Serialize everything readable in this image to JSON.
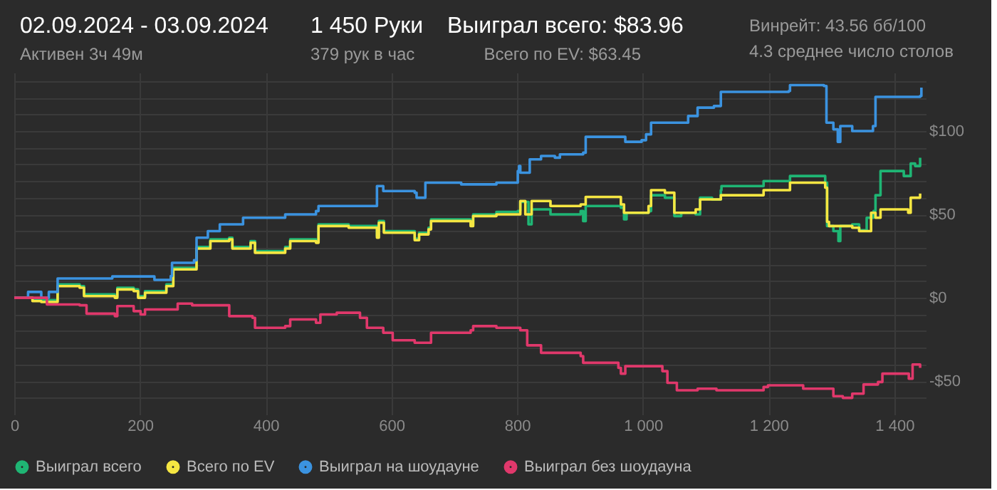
{
  "chart_data": {
    "type": "step",
    "title": "02.09.2024 - 03.09.2024",
    "subtitle": "Активен 3ч 49м",
    "annotations": [
      "1 450 Руки",
      "379 рук в час",
      "Выиграл всего: $83.96",
      "Всего по EV: $63.45",
      "Винрейт: 43.56 бб/100",
      "4.3 среднее число столов"
    ],
    "xlim": [
      0,
      1450
    ],
    "xticks": [
      0,
      200,
      400,
      600,
      800,
      {
        "value": 1000,
        "label": "1 000"
      },
      {
        "value": 1200,
        "label": "1 200"
      },
      {
        "value": 1400,
        "label": "1 400"
      }
    ],
    "ylim": [
      -70,
      135
    ],
    "yticks": [
      {
        "value": -60,
        "label": null
      },
      {
        "value": -50,
        "label": "-$50"
      },
      {
        "value": -40,
        "label": null
      },
      {
        "value": -30,
        "label": null
      },
      {
        "value": -20,
        "label": null
      },
      {
        "value": -10,
        "label": null
      },
      {
        "value": 0,
        "label": "$0"
      },
      {
        "value": 10,
        "label": null
      },
      {
        "value": 20,
        "label": null
      },
      {
        "value": 30,
        "label": null
      },
      {
        "value": 40,
        "label": null
      },
      {
        "value": 50,
        "label": "$50"
      },
      {
        "value": 60,
        "label": null
      },
      {
        "value": 70,
        "label": null
      },
      {
        "value": 80,
        "label": null
      },
      {
        "value": 90,
        "label": null
      },
      {
        "value": 100,
        "label": "$100"
      },
      {
        "value": 110,
        "label": null
      },
      {
        "value": 120,
        "label": null
      },
      {
        "value": 130,
        "label": null
      }
    ],
    "grid": true,
    "legend": "bottom",
    "marker": "none",
    "line_style": "solid",
    "series": [
      {
        "name": "Выиграл всего",
        "color": "#1fb574",
        "x": [
          0,
          29,
          43,
          69,
          104,
          111,
          160,
          164,
          190,
          197,
          208,
          242,
          253,
          286,
          290,
          308,
          312,
          342,
          347,
          376,
          383,
          431,
          439,
          480,
          484,
          532,
          577,
          580,
          588,
          637,
          644,
          659,
          663,
          726,
          730,
          767,
          801,
          805,
          818,
          823,
          853,
          901,
          905,
          909,
          965,
          970,
          974,
          1009,
          1013,
          1035,
          1050,
          1061,
          1084,
          1091,
          1110,
          1124,
          1125,
          1192,
          1234,
          1290,
          1293,
          1303,
          1311,
          1314,
          1333,
          1344,
          1356,
          1367,
          1370,
          1378,
          1415,
          1426,
          1433,
          1441
        ],
        "values": [
          0,
          -1,
          -1.5,
          8,
          7,
          2,
          1,
          6,
          5,
          1,
          4,
          8,
          18,
          18,
          30.5,
          30.5,
          35,
          36,
          30.5,
          34,
          28,
          30.5,
          35,
          34,
          44,
          43,
          37,
          46,
          40,
          35.5,
          39,
          42,
          47,
          44,
          50,
          51.5,
          52,
          57.5,
          44,
          53,
          50,
          52,
          46,
          55,
          54,
          47,
          51,
          52,
          61.5,
          60,
          49,
          51,
          50,
          60,
          59,
          64.5,
          67,
          70,
          73,
          69,
          43,
          40,
          34,
          43,
          44,
          40.5,
          48,
          52,
          61.5,
          76,
          73,
          80.5,
          79,
          84
        ]
      },
      {
        "name": "Всего по EV",
        "color": "#f5e642",
        "x": [
          0,
          29,
          43,
          69,
          104,
          111,
          160,
          164,
          190,
          197,
          208,
          242,
          253,
          286,
          290,
          308,
          312,
          342,
          347,
          376,
          383,
          431,
          439,
          480,
          484,
          532,
          577,
          580,
          588,
          637,
          644,
          659,
          663,
          726,
          730,
          767,
          805,
          813,
          823,
          853,
          901,
          909,
          965,
          970,
          1009,
          1013,
          1035,
          1050,
          1084,
          1091,
          1124,
          1192,
          1234,
          1290,
          1293,
          1296,
          1314,
          1333,
          1344,
          1363,
          1370,
          1378,
          1422,
          1426,
          1441
        ],
        "values": [
          0,
          -2,
          -2.5,
          7,
          6,
          1,
          0,
          5,
          4,
          0,
          3,
          7,
          17,
          17,
          29.5,
          29.5,
          34,
          35,
          29.5,
          33,
          27,
          29.5,
          34,
          33,
          43,
          42,
          36,
          45,
          39,
          34.5,
          38,
          41,
          46,
          43,
          49,
          50,
          58,
          50,
          58,
          55,
          56,
          60.5,
          56,
          51,
          55,
          64.5,
          63,
          51,
          53,
          59,
          61.5,
          64.5,
          69,
          66,
          45.5,
          43,
          43,
          42,
          40,
          51,
          48,
          53,
          51,
          60,
          62.5
        ]
      },
      {
        "name": "Выиграл на шоудауне",
        "color": "#3b93e0",
        "x": [
          0,
          22,
          40,
          43,
          55,
          69,
          156,
          223,
          249,
          251,
          286,
          290,
          308,
          327,
          364,
          428,
          431,
          480,
          484,
          558,
          577,
          587,
          637,
          640,
          654,
          711,
          767,
          801,
          803,
          805,
          820,
          838,
          860,
          868,
          905,
          909,
          965,
          972,
          998,
          1005,
          1013,
          1061,
          1072,
          1087,
          1113,
          1124,
          1232,
          1234,
          1288,
          1292,
          1303,
          1310,
          1314,
          1329,
          1333,
          1359,
          1366,
          1370,
          1441,
          1443
        ],
        "values": [
          0,
          3.5,
          3.5,
          0,
          3.5,
          11.6,
          12.8,
          10.7,
          13,
          21,
          22.5,
          36,
          40,
          44,
          48,
          48,
          50,
          52,
          55,
          55,
          67,
          64,
          63,
          60,
          69,
          68,
          69,
          76,
          79,
          75,
          83,
          85,
          84,
          86,
          87,
          96.5,
          96.5,
          93.5,
          94.5,
          98,
          105,
          105,
          109,
          114,
          115,
          123.5,
          124,
          127.5,
          127,
          105,
          101,
          93.5,
          103,
          103,
          100,
          100,
          103,
          120.5,
          121,
          126
        ]
      },
      {
        "name": "Выиграл без шоудауна",
        "color": "#e0386b",
        "x": [
          0,
          52,
          104,
          115,
          160,
          164,
          190,
          201,
          208,
          260,
          283,
          342,
          379,
          383,
          431,
          439,
          480,
          487,
          513,
          550,
          561,
          587,
          602,
          637,
          659,
          663,
          726,
          730,
          767,
          805,
          816,
          838,
          864,
          901,
          905,
          961,
          965,
          972,
          1031,
          1039,
          1054,
          1087,
          1117,
          1192,
          1199,
          1255,
          1303,
          1318,
          1333,
          1344,
          1351,
          1374,
          1381,
          1423,
          1429,
          1441
        ],
        "values": [
          0,
          -4,
          -4.5,
          -9.5,
          -11,
          -5,
          -8,
          -10,
          -7,
          -3.5,
          -4.5,
          -11,
          -12,
          -18,
          -17,
          -13,
          -15,
          -10,
          -9,
          -12,
          -18,
          -21,
          -25.5,
          -27,
          -27,
          -21,
          -19.5,
          -17,
          -18,
          -19.5,
          -28.5,
          -33,
          -33,
          -35,
          -39,
          -42,
          -45.5,
          -41,
          -44,
          -51,
          -55.5,
          -54.5,
          -55.5,
          -53.5,
          -52.5,
          -54.5,
          -59,
          -60,
          -57.5,
          -57.5,
          -52,
          -50.5,
          -45.5,
          -48.5,
          -40,
          -42
        ]
      }
    ]
  }
}
